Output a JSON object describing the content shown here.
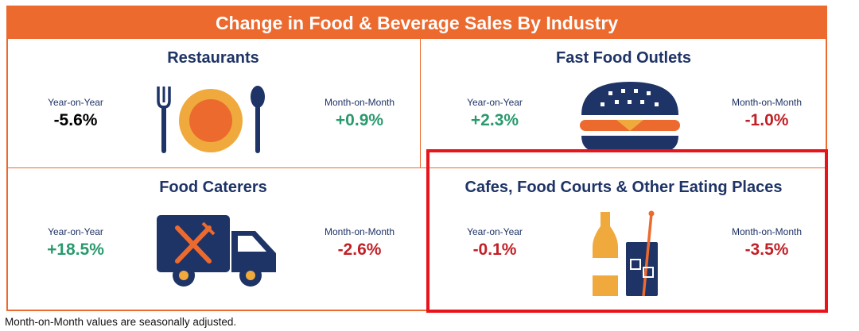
{
  "title": "Change in Food & Beverage Sales By Industry",
  "footnote": "Month-on-Month values are seasonally adjusted.",
  "colors": {
    "accent": "#ec6a2e",
    "navy": "#1e3366",
    "negative": "#c22026",
    "positive": "#2a9a6e",
    "highlight": "#e8141a"
  },
  "chart_data": {
    "type": "table",
    "title": "Change in Food & Beverage Sales By Industry",
    "columns": [
      "Year-on-Year",
      "Month-on-Month"
    ],
    "units": "%",
    "industries": [
      {
        "name": "Restaurants",
        "icon": "plate-cutlery-icon",
        "yoy": "-5.6%",
        "mom": "+0.9%",
        "yoy_value": -5.6,
        "mom_value": 0.9
      },
      {
        "name": "Fast Food Outlets",
        "icon": "burger-icon",
        "yoy": "+2.3%",
        "mom": "-1.0%",
        "yoy_value": 2.3,
        "mom_value": -1.0
      },
      {
        "name": "Food Caterers",
        "icon": "food-truck-icon",
        "yoy": "+18.5%",
        "mom": "-2.6%",
        "yoy_value": 18.5,
        "mom_value": -2.6
      },
      {
        "name": "Cafes, Food Courts & Other Eating Places",
        "icon": "drinks-icon",
        "yoy": "-0.1%",
        "mom": "-3.5%",
        "yoy_value": -0.1,
        "mom_value": -3.5,
        "highlighted": true
      }
    ]
  }
}
